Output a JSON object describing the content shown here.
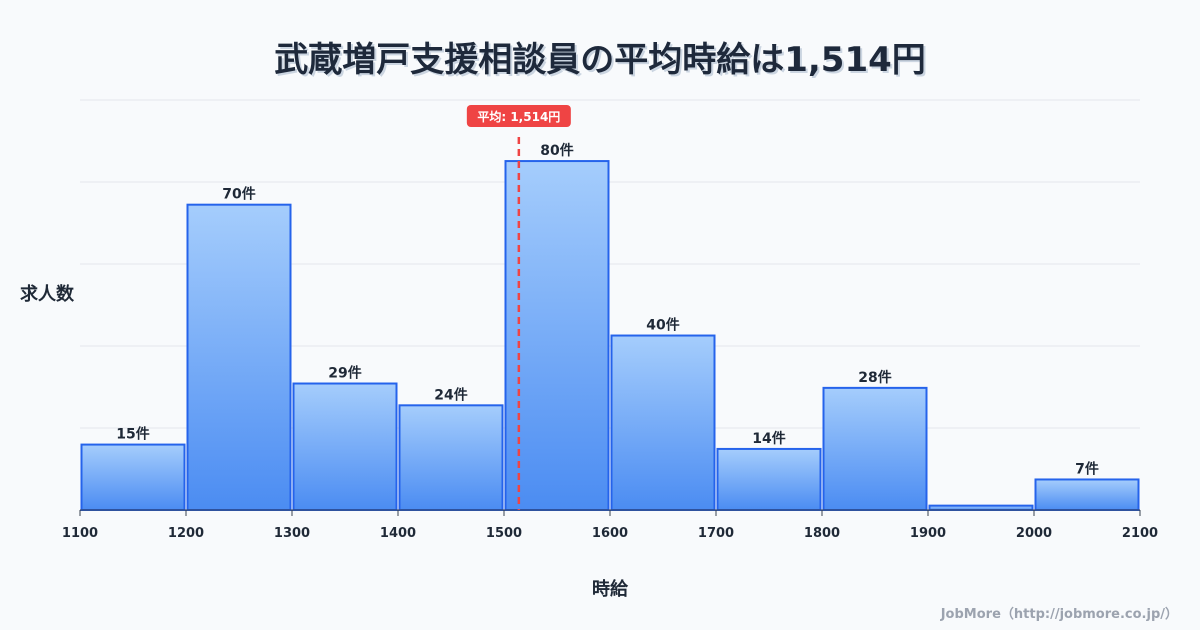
{
  "title": "武蔵増戸支援相談員の平均時給は1,514円",
  "credit": "JobMore（http://jobmore.co.jp/）",
  "chart_data": {
    "type": "bar",
    "title": "武蔵増戸支援相談員の平均時給は1,514円",
    "xlabel": "時給",
    "ylabel": "求人数",
    "bin_edges": [
      1100,
      1200,
      1300,
      1400,
      1500,
      1600,
      1700,
      1800,
      1900,
      2000,
      2100
    ],
    "values": [
      15,
      70,
      29,
      24,
      80,
      40,
      14,
      28,
      1,
      7
    ],
    "labels": [
      "15件",
      "70件",
      "29件",
      "24件",
      "80件",
      "40件",
      "14件",
      "28件",
      "",
      "7件"
    ],
    "ylim": [
      0,
      94
    ],
    "mean": 1514,
    "mean_label": "平均: 1,514円",
    "grid": true,
    "colors": {
      "bar_top": "#a5cdfc",
      "bar_bottom": "#4b8cf2",
      "bar_stroke": "#2563eb",
      "mean": "#ef4444"
    }
  }
}
